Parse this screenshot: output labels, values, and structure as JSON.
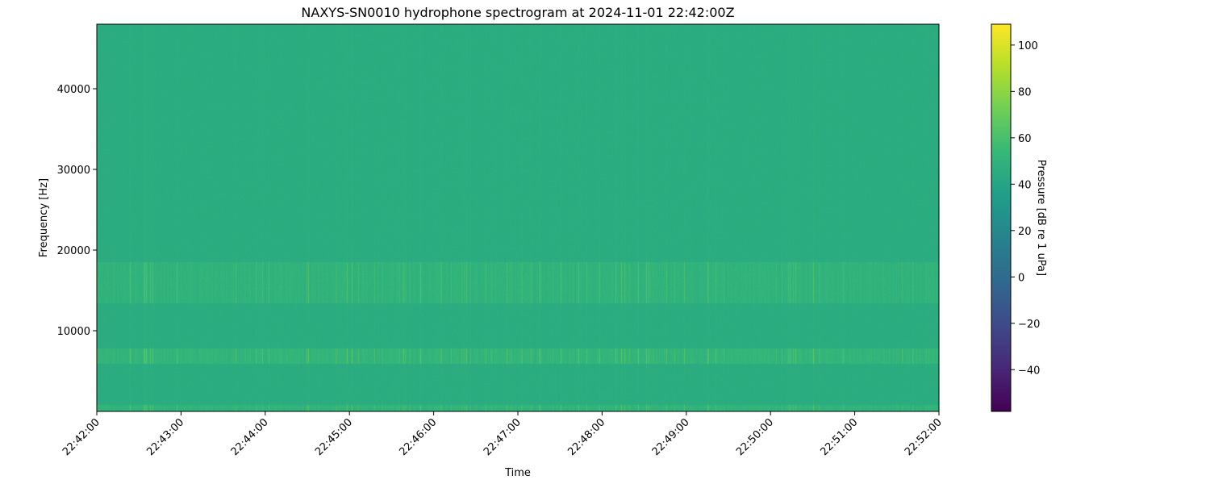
{
  "chart_data": {
    "type": "heatmap",
    "title": "NAXYS-SN0010 hydrophone spectrogram at 2024-11-01 22:42:00Z",
    "xlabel": "Time",
    "ylabel": "Frequency [Hz]",
    "x_ticks": [
      "22:42:00",
      "22:43:00",
      "22:44:00",
      "22:45:00",
      "22:46:00",
      "22:47:00",
      "22:48:00",
      "22:49:00",
      "22:50:00",
      "22:51:00",
      "22:52:00"
    ],
    "xlim": [
      "22:42:00",
      "22:52:00"
    ],
    "y_ticks": [
      10000,
      20000,
      30000,
      40000
    ],
    "ylim": [
      0,
      48000
    ],
    "colormap": "viridis",
    "colorbar": {
      "label": "Pressure [dB re 1 uPa]",
      "ticks": [
        -40,
        -20,
        0,
        20,
        40,
        60,
        80,
        100
      ],
      "range": [
        -58,
        109
      ]
    },
    "background_level_db": 45,
    "features": [
      {
        "freq_range_hz": [
          6000,
          7800
        ],
        "level_db": 62
      },
      {
        "freq_range_hz": [
          13500,
          18500
        ],
        "level_db": 58
      },
      {
        "freq_range_hz": [
          0,
          800
        ],
        "level_db": 60
      }
    ],
    "grid": false
  }
}
